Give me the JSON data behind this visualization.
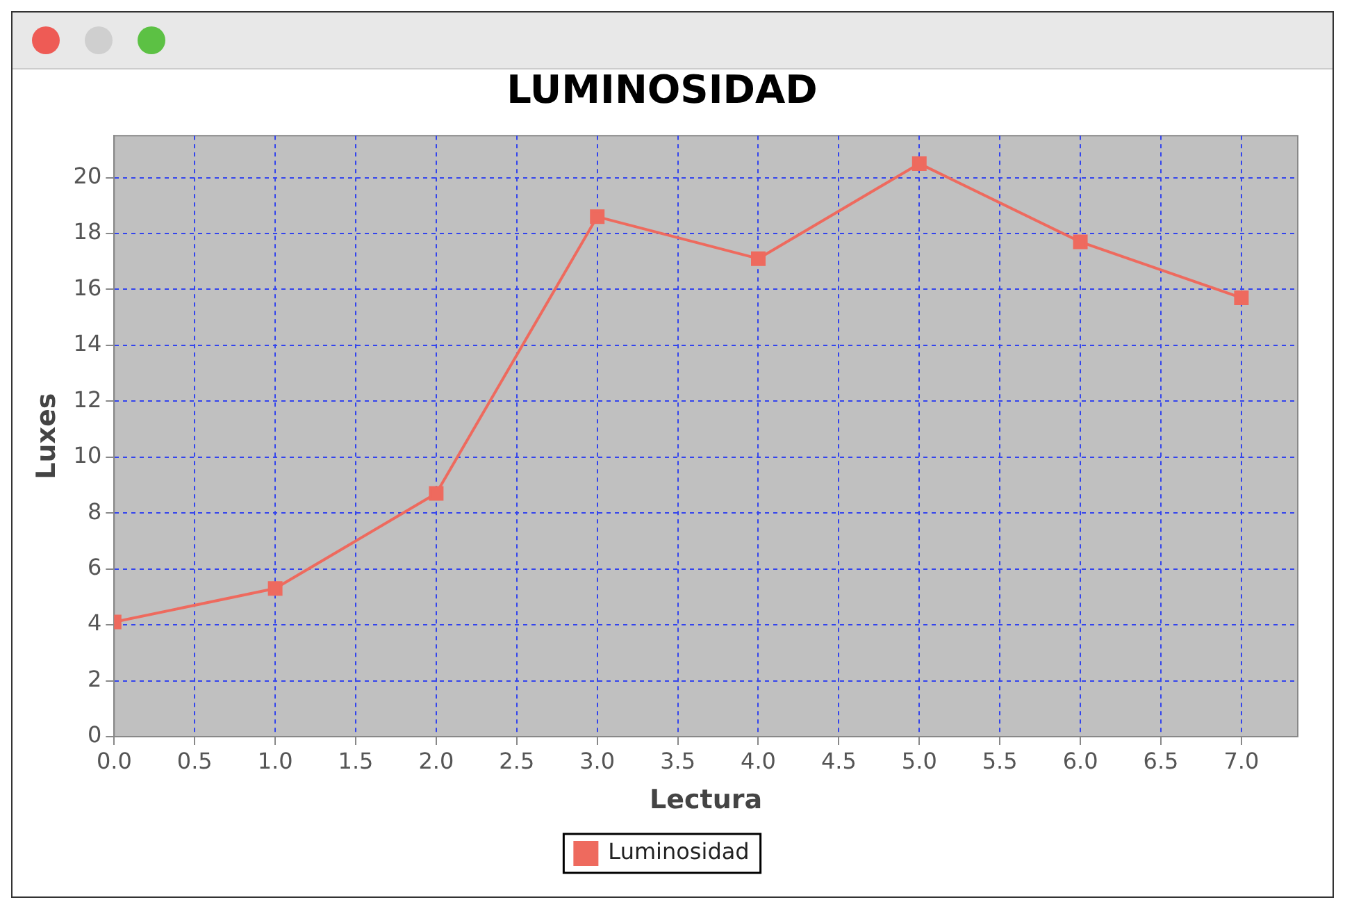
{
  "chart_data": {
    "type": "line",
    "title": "LUMINOSIDAD",
    "xlabel": "Lectura",
    "ylabel": "Luxes",
    "x": [
      0,
      1,
      2,
      3,
      4,
      5,
      6,
      7
    ],
    "series": [
      {
        "name": "Luminosidad",
        "color": "#ee6a5e",
        "values": [
          4.1,
          5.3,
          8.7,
          18.6,
          17.1,
          20.5,
          17.7,
          15.7
        ]
      }
    ],
    "xlim": [
      0,
      7.35
    ],
    "xticks": [
      {
        "value": 0,
        "label": "0.0"
      },
      {
        "value": 0.5,
        "label": "0.5"
      },
      {
        "value": 1,
        "label": "1.0"
      },
      {
        "value": 1.5,
        "label": "1.5"
      },
      {
        "value": 2,
        "label": "2.0"
      },
      {
        "value": 2.5,
        "label": "2.5"
      },
      {
        "value": 3,
        "label": "3.0"
      },
      {
        "value": 3.5,
        "label": "3.5"
      },
      {
        "value": 4,
        "label": "4.0"
      },
      {
        "value": 4.5,
        "label": "4.5"
      },
      {
        "value": 5,
        "label": "5.0"
      },
      {
        "value": 5.5,
        "label": "5.5"
      },
      {
        "value": 6,
        "label": "6.0"
      },
      {
        "value": 6.5,
        "label": "6.5"
      },
      {
        "value": 7,
        "label": "7.0"
      }
    ],
    "ylim": [
      0,
      21.5
    ],
    "yticks": [
      0,
      2,
      4,
      6,
      8,
      10,
      12,
      14,
      16,
      18,
      20
    ],
    "grid": true,
    "legend": "bottom",
    "marker": "square",
    "line_style": "solid"
  }
}
